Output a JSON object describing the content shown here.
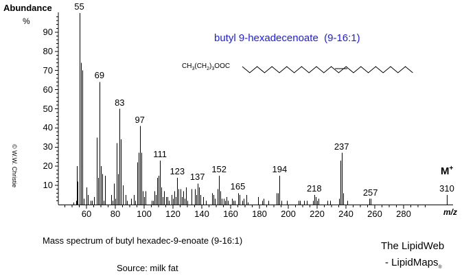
{
  "chart_data": {
    "type": "bar",
    "title": "butyl 9-hexadecenoate  (9-16:1)",
    "xlabel": "m/z",
    "ylabel": "Abundance %",
    "xlim": [
      40,
      295
    ],
    "ylim": [
      0,
      100
    ],
    "x_ticks": [
      60,
      80,
      100,
      120,
      140,
      160,
      180,
      200,
      220,
      240,
      260,
      280
    ],
    "y_ticks": [
      10,
      20,
      30,
      40,
      50,
      60,
      70,
      80,
      90
    ],
    "grid": false,
    "annotations": [
      "M+"
    ],
    "labeled_peaks": [
      55,
      69,
      83,
      97,
      111,
      123,
      137,
      152,
      165,
      194,
      218,
      237,
      257,
      310
    ],
    "peaks": [
      {
        "mz": 51,
        "abundance": 1
      },
      {
        "mz": 53,
        "abundance": 2
      },
      {
        "mz": 54,
        "abundance": 12
      },
      {
        "mz": 55,
        "abundance": 100
      },
      {
        "mz": 56,
        "abundance": 74
      },
      {
        "mz": 57,
        "abundance": 70
      },
      {
        "mz": 53.5,
        "abundance": 20
      },
      {
        "mz": 58,
        "abundance": 3
      },
      {
        "mz": 60,
        "abundance": 9
      },
      {
        "mz": 61,
        "abundance": 5
      },
      {
        "mz": 63,
        "abundance": 2
      },
      {
        "mz": 64,
        "abundance": 2
      },
      {
        "mz": 65,
        "abundance": 4
      },
      {
        "mz": 67,
        "abundance": 35
      },
      {
        "mz": 68,
        "abundance": 14
      },
      {
        "mz": 69,
        "abundance": 64
      },
      {
        "mz": 70,
        "abundance": 20
      },
      {
        "mz": 71,
        "abundance": 16
      },
      {
        "mz": 72,
        "abundance": 2
      },
      {
        "mz": 73,
        "abundance": 15
      },
      {
        "mz": 77,
        "abundance": 5
      },
      {
        "mz": 78,
        "abundance": 2
      },
      {
        "mz": 79,
        "abundance": 11
      },
      {
        "mz": 80,
        "abundance": 3
      },
      {
        "mz": 81,
        "abundance": 32
      },
      {
        "mz": 82,
        "abundance": 16
      },
      {
        "mz": 83,
        "abundance": 50
      },
      {
        "mz": 84,
        "abundance": 34
      },
      {
        "mz": 85,
        "abundance": 10
      },
      {
        "mz": 87,
        "abundance": 5
      },
      {
        "mz": 88,
        "abundance": 2
      },
      {
        "mz": 91,
        "abundance": 3
      },
      {
        "mz": 93,
        "abundance": 5
      },
      {
        "mz": 94,
        "abundance": 2
      },
      {
        "mz": 95,
        "abundance": 22
      },
      {
        "mz": 96,
        "abundance": 27
      },
      {
        "mz": 97,
        "abundance": 41
      },
      {
        "mz": 98,
        "abundance": 27
      },
      {
        "mz": 99,
        "abundance": 7
      },
      {
        "mz": 100,
        "abundance": 4
      },
      {
        "mz": 101,
        "abundance": 7
      },
      {
        "mz": 105,
        "abundance": 2
      },
      {
        "mz": 106,
        "abundance": 2
      },
      {
        "mz": 107,
        "abundance": 7
      },
      {
        "mz": 108,
        "abundance": 5
      },
      {
        "mz": 109,
        "abundance": 14
      },
      {
        "mz": 110,
        "abundance": 15
      },
      {
        "mz": 111,
        "abundance": 23
      },
      {
        "mz": 112,
        "abundance": 9
      },
      {
        "mz": 113,
        "abundance": 4
      },
      {
        "mz": 114,
        "abundance": 7
      },
      {
        "mz": 115,
        "abundance": 4
      },
      {
        "mz": 116,
        "abundance": 4
      },
      {
        "mz": 117,
        "abundance": 2
      },
      {
        "mz": 119,
        "abundance": 5
      },
      {
        "mz": 120,
        "abundance": 3
      },
      {
        "mz": 121,
        "abundance": 7
      },
      {
        "mz": 122,
        "abundance": 4
      },
      {
        "mz": 123,
        "abundance": 14
      },
      {
        "mz": 124,
        "abundance": 8
      },
      {
        "mz": 125,
        "abundance": 8
      },
      {
        "mz": 126,
        "abundance": 4
      },
      {
        "mz": 127,
        "abundance": 7
      },
      {
        "mz": 128,
        "abundance": 3
      },
      {
        "mz": 129,
        "abundance": 9
      },
      {
        "mz": 130,
        "abundance": 2
      },
      {
        "mz": 133,
        "abundance": 8
      },
      {
        "mz": 135,
        "abundance": 8
      },
      {
        "mz": 136,
        "abundance": 5
      },
      {
        "mz": 137,
        "abundance": 11
      },
      {
        "mz": 138,
        "abundance": 9
      },
      {
        "mz": 139,
        "abundance": 5
      },
      {
        "mz": 141,
        "abundance": 4
      },
      {
        "mz": 143,
        "abundance": 2
      },
      {
        "mz": 147,
        "abundance": 6
      },
      {
        "mz": 148,
        "abundance": 5
      },
      {
        "mz": 149,
        "abundance": 3
      },
      {
        "mz": 151,
        "abundance": 8
      },
      {
        "mz": 152,
        "abundance": 15
      },
      {
        "mz": 153,
        "abundance": 7
      },
      {
        "mz": 154,
        "abundance": 3
      },
      {
        "mz": 155,
        "abundance": 3
      },
      {
        "mz": 156,
        "abundance": 2
      },
      {
        "mz": 157,
        "abundance": 4
      },
      {
        "mz": 158,
        "abundance": 2
      },
      {
        "mz": 161,
        "abundance": 3
      },
      {
        "mz": 162,
        "abundance": 2
      },
      {
        "mz": 163,
        "abundance": 2
      },
      {
        "mz": 165,
        "abundance": 6
      },
      {
        "mz": 166,
        "abundance": 5
      },
      {
        "mz": 168,
        "abundance": 2
      },
      {
        "mz": 169,
        "abundance": 3
      },
      {
        "mz": 171,
        "abundance": 5
      },
      {
        "mz": 172,
        "abundance": 1
      },
      {
        "mz": 179,
        "abundance": 4
      },
      {
        "mz": 182,
        "abundance": 2
      },
      {
        "mz": 183,
        "abundance": 3
      },
      {
        "mz": 186,
        "abundance": 2
      },
      {
        "mz": 192,
        "abundance": 6
      },
      {
        "mz": 193,
        "abundance": 6
      },
      {
        "mz": 194,
        "abundance": 15
      },
      {
        "mz": 195,
        "abundance": 2
      },
      {
        "mz": 199,
        "abundance": 2
      },
      {
        "mz": 207,
        "abundance": 2
      },
      {
        "mz": 208,
        "abundance": 2
      },
      {
        "mz": 211,
        "abundance": 2
      },
      {
        "mz": 213,
        "abundance": 2
      },
      {
        "mz": 217,
        "abundance": 2
      },
      {
        "mz": 218,
        "abundance": 5
      },
      {
        "mz": 219,
        "abundance": 4
      },
      {
        "mz": 220,
        "abundance": 2
      },
      {
        "mz": 221,
        "abundance": 3
      },
      {
        "mz": 227,
        "abundance": 2
      },
      {
        "mz": 229,
        "abundance": 2
      },
      {
        "mz": 235,
        "abundance": 3
      },
      {
        "mz": 236,
        "abundance": 23
      },
      {
        "mz": 237,
        "abundance": 27
      },
      {
        "mz": 238,
        "abundance": 6
      },
      {
        "mz": 241,
        "abundance": 2
      },
      {
        "mz": 256,
        "abundance": 3
      },
      {
        "mz": 257,
        "abundance": 3
      },
      {
        "mz": 310,
        "abundance": 5
      }
    ]
  },
  "header": {
    "ylabel": "Abundance",
    "yunit": "%",
    "title": "butyl 9-hexadecenoate  (9-16:1)",
    "formula_prefix_1": "CH",
    "formula_sub_1": "3",
    "formula_prefix_2": "(CH",
    "formula_sub_2": "2",
    "formula_prefix_3": ")",
    "formula_sub_3": "3",
    "formula_suffix": "OOC"
  },
  "annotations": {
    "molecular_ion": "M",
    "molecular_ion_sup": "+",
    "xunit": "m/z",
    "copyright": "© W.W. Christie"
  },
  "footer": {
    "caption": "Mass spectrum of butyl hexadec-9-enoate (9-16:1)",
    "source": "Source: milk fat",
    "brand_line1": "The LipidWeb",
    "brand_line2": "- LipidMaps",
    "brand_mark": "®"
  }
}
